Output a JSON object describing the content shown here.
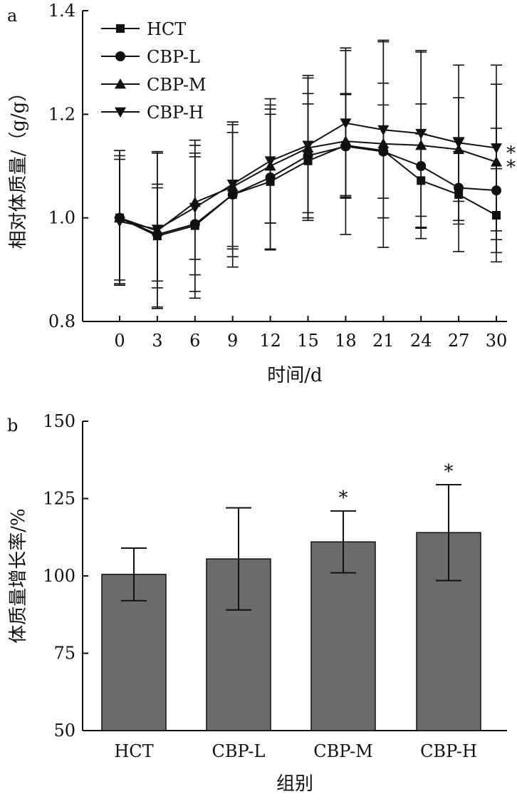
{
  "chart_data": [
    {
      "type": "line",
      "panel_label": "a",
      "xlabel": "时间/d",
      "ylabel": "相对体质量/（g/g）",
      "x": [
        0,
        3,
        6,
        9,
        12,
        15,
        18,
        21,
        24,
        27,
        30
      ],
      "x_tick_labels": [
        "0",
        "3",
        "6",
        "9",
        "12",
        "15",
        "18",
        "21",
        "24",
        "27",
        "30"
      ],
      "ylim": [
        0.8,
        1.4
      ],
      "y_ticks": [
        0.8,
        1.0,
        1.2,
        1.4
      ],
      "y_tick_labels": [
        "0.8",
        "1.0",
        "1.2",
        "1.4"
      ],
      "legend_position": "top-left",
      "grid": false,
      "series": [
        {
          "name": "HCT",
          "marker": "square",
          "values": [
            1.0,
            0.965,
            0.985,
            1.045,
            1.07,
            1.11,
            1.14,
            1.13,
            1.072,
            1.045,
            1.005
          ],
          "errors": [
            0.13,
            0.1,
            0.14,
            0.14,
            0.13,
            0.11,
            0.1,
            0.13,
            0.09,
            0.11,
            0.09
          ]
        },
        {
          "name": "CBP-L",
          "marker": "circle",
          "values": [
            1.0,
            0.968,
            0.988,
            1.045,
            1.078,
            1.12,
            1.138,
            1.128,
            1.1,
            1.058,
            1.053
          ],
          "errors": [
            0.12,
            0.09,
            0.13,
            0.12,
            0.14,
            0.12,
            0.1,
            0.09,
            0.12,
            0.07,
            0.12
          ]
        },
        {
          "name": "CBP-M",
          "marker": "triangle-up",
          "values": [
            1.0,
            0.975,
            1.03,
            1.06,
            1.1,
            1.135,
            1.148,
            1.143,
            1.14,
            1.132,
            1.108
          ],
          "errors": [
            0.13,
            0.15,
            0.11,
            0.12,
            0.11,
            0.14,
            0.18,
            0.2,
            0.18,
            0.1,
            0.15
          ]
        },
        {
          "name": "CBP-H",
          "marker": "triangle-down",
          "values": [
            0.993,
            0.978,
            1.02,
            1.065,
            1.11,
            1.14,
            1.183,
            1.17,
            1.163,
            1.145,
            1.135
          ],
          "errors": [
            0.12,
            0.15,
            0.13,
            0.12,
            0.12,
            0.13,
            0.14,
            0.17,
            0.16,
            0.15,
            0.16
          ]
        }
      ],
      "annotations": [
        {
          "text": "*",
          "near_series": "CBP-H",
          "x": 30
        },
        {
          "text": "*",
          "near_series": "CBP-M",
          "x": 30
        }
      ]
    },
    {
      "type": "bar",
      "panel_label": "b",
      "xlabel": "组别",
      "ylabel": "体质量增长率/%",
      "categories": [
        "HCT",
        "CBP-L",
        "CBP-M",
        "CBP-H"
      ],
      "values": [
        100.5,
        105.5,
        111,
        114
      ],
      "errors": [
        8.5,
        16.5,
        10,
        15.5
      ],
      "significance": [
        "",
        "",
        "*",
        "*"
      ],
      "ylim": [
        50,
        150
      ],
      "y_ticks": [
        50,
        75,
        100,
        125,
        150
      ],
      "y_tick_labels": [
        "50",
        "75",
        "100",
        "125",
        "150"
      ],
      "bar_color": "#6b6b6b",
      "grid": false
    }
  ]
}
